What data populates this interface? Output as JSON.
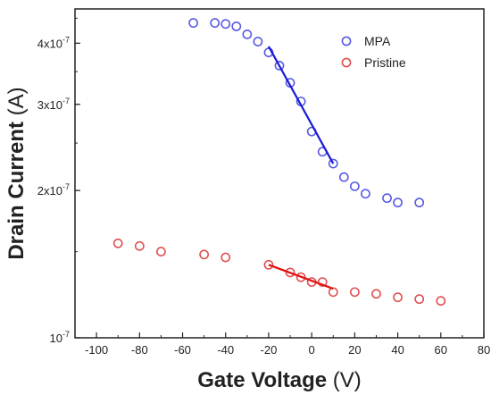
{
  "chart_data": {
    "type": "scatter",
    "xlabel": "Gate Voltage",
    "xunit": "(V)",
    "ylabel": "Drain Current",
    "yunit": "(A)",
    "xlim": [
      -110,
      80
    ],
    "ylim": [
      1e-07,
      4.7e-07
    ],
    "yscale": "log",
    "x_ticks": [
      -100,
      -80,
      -60,
      -40,
      -20,
      0,
      20,
      40,
      60,
      80
    ],
    "y_ticks": [
      {
        "value": 1e-07,
        "mantissa": "10",
        "exponent": "-7"
      },
      {
        "value": 2e-07,
        "mantissa": "2x10",
        "exponent": "-7"
      },
      {
        "value": 3e-07,
        "mantissa": "3x10",
        "exponent": "-7"
      },
      {
        "value": 4e-07,
        "mantissa": "4x10",
        "exponent": "-7"
      }
    ],
    "legend_position": "top-right",
    "series": [
      {
        "name": "MPA",
        "color": "#5a5ae6",
        "fit_color": "#1a1ad6",
        "x": [
          -55,
          -45,
          -40,
          -35,
          -30,
          -25,
          -20,
          -15,
          -10,
          -5,
          0,
          5,
          10,
          15,
          20,
          25,
          35,
          40,
          50
        ],
        "y": [
          4.4e-07,
          4.4e-07,
          4.38e-07,
          4.33e-07,
          4.17e-07,
          4.03e-07,
          3.83e-07,
          3.6e-07,
          3.32e-07,
          3.04e-07,
          2.64e-07,
          2.4e-07,
          2.27e-07,
          2.13e-07,
          2.04e-07,
          1.97e-07,
          1.93e-07,
          1.89e-07,
          1.89e-07
        ],
        "fit": {
          "x": [
            -20,
            10
          ],
          "y": [
            3.94e-07,
            2.27e-07
          ]
        }
      },
      {
        "name": "Pristine",
        "color": "#e05050",
        "fit_color": "#e01010",
        "x": [
          -90,
          -80,
          -70,
          -50,
          -40,
          -20,
          -10,
          -5,
          0,
          5,
          10,
          20,
          30,
          40,
          50,
          60
        ],
        "y": [
          1.56e-07,
          1.54e-07,
          1.5e-07,
          1.48e-07,
          1.46e-07,
          1.41e-07,
          1.36e-07,
          1.33e-07,
          1.3e-07,
          1.3e-07,
          1.24e-07,
          1.24e-07,
          1.23e-07,
          1.21e-07,
          1.2e-07,
          1.19e-07
        ],
        "fit": {
          "x": [
            -20,
            10
          ],
          "y": [
            1.41e-07,
            1.26e-07
          ]
        }
      }
    ]
  }
}
